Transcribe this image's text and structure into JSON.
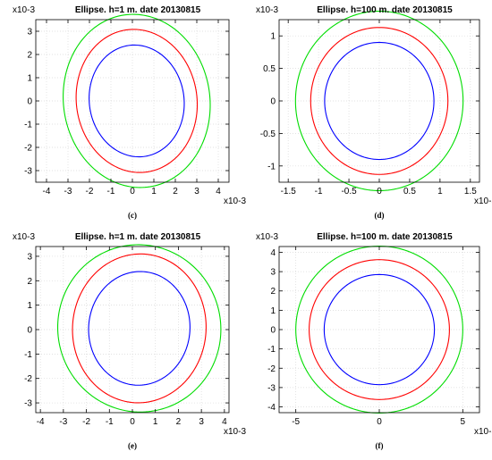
{
  "chart_data": [
    {
      "type": "line",
      "title": "Ellipse. h=1 m. date 20130815",
      "caption": "(c)",
      "exponent": {
        "y": "x10-3",
        "x": "x10-3"
      },
      "xlim": [
        -4.5,
        4.5
      ],
      "ylim": [
        -3.5,
        3.5
      ],
      "xticks": [
        -4,
        -3,
        -2,
        -1,
        0,
        1,
        2,
        3,
        4
      ],
      "xtick_labels": [
        "-4",
        "-3",
        "-2",
        "-1",
        "0",
        "1",
        "2",
        "3",
        "4"
      ],
      "yticks": [
        -3,
        -2,
        -1,
        0,
        1,
        2,
        3
      ],
      "ytick_labels": [
        "-3",
        "-2",
        "-1",
        "0",
        "1",
        "2",
        "3"
      ],
      "grid": true,
      "series": [
        {
          "color": "#0000ff",
          "center": [
            0.2,
            0.0
          ],
          "semi_axes": [
            2.2,
            2.42
          ],
          "rotation_deg": 15
        },
        {
          "color": "#ff0000",
          "center": [
            0.2,
            0.0
          ],
          "semi_axes": [
            2.8,
            3.1
          ],
          "rotation_deg": 15
        },
        {
          "color": "#00dd00",
          "center": [
            0.2,
            0.0
          ],
          "semi_axes": [
            3.4,
            3.75
          ],
          "rotation_deg": 15
        }
      ]
    },
    {
      "type": "line",
      "title": "Ellipse. h=100 m. date 20130815",
      "caption": "(d)",
      "exponent": {
        "y": "x10-3",
        "x": "x10-3"
      },
      "xlim": [
        -1.65,
        1.65
      ],
      "ylim": [
        -1.25,
        1.25
      ],
      "xticks": [
        -1.5,
        -1,
        -0.5,
        0,
        0.5,
        1,
        1.5
      ],
      "xtick_labels": [
        "-1.5",
        "-1",
        "-0.5",
        "0",
        "0.5",
        "1",
        "1.5"
      ],
      "yticks": [
        -1,
        -0.5,
        0,
        0.5,
        1
      ],
      "ytick_labels": [
        "-1",
        "-0.5",
        "0",
        "0.5",
        "1"
      ],
      "grid": true,
      "series": [
        {
          "color": "#0000ff",
          "center": [
            0.0,
            0.0
          ],
          "semi_axes": [
            0.9,
            0.9
          ],
          "rotation_deg": 0
        },
        {
          "color": "#ff0000",
          "center": [
            0.0,
            0.0
          ],
          "semi_axes": [
            1.13,
            1.13
          ],
          "rotation_deg": 0
        },
        {
          "color": "#00dd00",
          "center": [
            0.0,
            0.0
          ],
          "semi_axes": [
            1.38,
            1.38
          ],
          "rotation_deg": 0
        }
      ]
    },
    {
      "type": "line",
      "title": "Ellipse. h=1 m. date 20130815",
      "caption": "(e)",
      "exponent": {
        "y": "x10-3",
        "x": "x10-3"
      },
      "xlim": [
        -4.2,
        4.2
      ],
      "ylim": [
        -3.4,
        3.4
      ],
      "xticks": [
        -4,
        -3,
        -2,
        -1,
        0,
        1,
        2,
        3,
        4
      ],
      "xtick_labels": [
        "-4",
        "-3",
        "-2",
        "-1",
        "0",
        "1",
        "2",
        "3",
        "4"
      ],
      "yticks": [
        -3,
        -2,
        -1,
        0,
        1,
        2,
        3
      ],
      "ytick_labels": [
        "-3",
        "-2",
        "-1",
        "0",
        "1",
        "2",
        "3"
      ],
      "grid": true,
      "series": [
        {
          "color": "#0000ff",
          "center": [
            0.3,
            0.05
          ],
          "semi_axes": [
            2.2,
            2.33
          ],
          "rotation_deg": -10
        },
        {
          "color": "#ff0000",
          "center": [
            0.3,
            0.05
          ],
          "semi_axes": [
            2.9,
            3.05
          ],
          "rotation_deg": -10
        },
        {
          "color": "#00dd00",
          "center": [
            0.3,
            0.05
          ],
          "semi_axes": [
            3.55,
            3.42
          ],
          "rotation_deg": -10
        }
      ]
    },
    {
      "type": "line",
      "title": "Ellipse. h=100 m. date 20130815",
      "caption": "(f)",
      "exponent": {
        "y": "x10-3",
        "x": "x10-3"
      },
      "xlim": [
        -6,
        6
      ],
      "ylim": [
        -4.3,
        4.3
      ],
      "xticks": [
        -5,
        0,
        5
      ],
      "xtick_labels": [
        "-5",
        "0",
        "5"
      ],
      "yticks": [
        -4,
        -3,
        -2,
        -1,
        0,
        1,
        2,
        3,
        4
      ],
      "ytick_labels": [
        "-4",
        "-3",
        "-2",
        "-1",
        "0",
        "1",
        "2",
        "3",
        "4"
      ],
      "grid": true,
      "series": [
        {
          "color": "#0000ff",
          "center": [
            0.0,
            0.0
          ],
          "semi_axes": [
            3.3,
            2.85
          ],
          "rotation_deg": 0
        },
        {
          "color": "#ff0000",
          "center": [
            0.0,
            0.0
          ],
          "semi_axes": [
            4.2,
            3.62
          ],
          "rotation_deg": 0
        },
        {
          "color": "#00dd00",
          "center": [
            0.0,
            0.0
          ],
          "semi_axes": [
            5.0,
            4.32
          ],
          "rotation_deg": 0
        }
      ]
    }
  ]
}
